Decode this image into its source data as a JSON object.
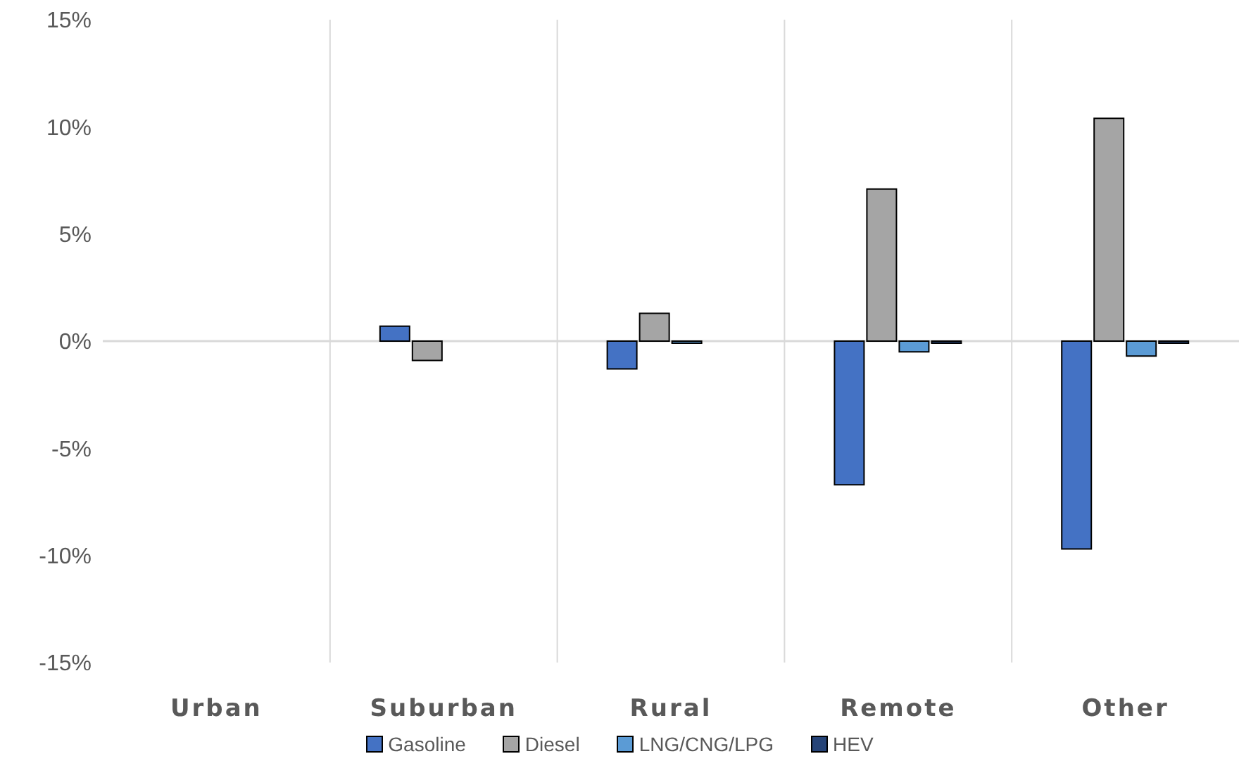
{
  "chart_data": {
    "type": "bar",
    "categories": [
      "Urban",
      "Suburban",
      "Rural",
      "Remote",
      "Other"
    ],
    "series": [
      {
        "name": "Gasoline",
        "color": "#4472c4",
        "values": [
          0,
          0.7,
          -1.3,
          -6.7,
          -9.7
        ]
      },
      {
        "name": "Diesel",
        "color": "#a5a5a5",
        "values": [
          0,
          -0.9,
          1.3,
          7.1,
          10.4
        ]
      },
      {
        "name": "LNG/CNG/LPG",
        "color": "#5b9bd5",
        "values": [
          0,
          0,
          -0.1,
          -0.5,
          -0.7
        ]
      },
      {
        "name": "HEV",
        "color": "#264478",
        "values": [
          0,
          0,
          0,
          -0.1,
          -0.1
        ]
      }
    ],
    "ylim": [
      -15,
      15
    ],
    "yticks": [
      {
        "value": -15,
        "label": "-15%"
      },
      {
        "value": -10,
        "label": "-10%"
      },
      {
        "value": -5,
        "label": "-5%"
      },
      {
        "value": 0,
        "label": "0%"
      },
      {
        "value": 5,
        "label": "5%"
      },
      {
        "value": 10,
        "label": "10%"
      },
      {
        "value": 15,
        "label": "15%"
      }
    ],
    "grid": "x",
    "legend": "bottom"
  }
}
